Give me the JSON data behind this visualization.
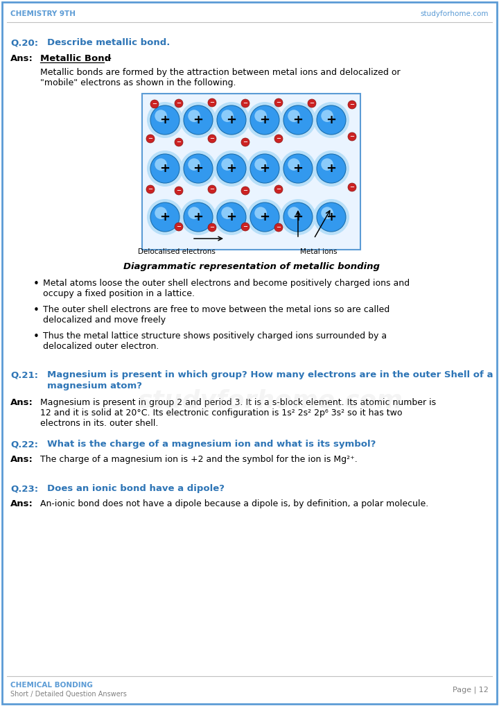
{
  "bg_color": "#ffffff",
  "border_color": "#5b9bd5",
  "header_text_left": "CHEMISTRY 9TH",
  "header_text_right": "studyforhome.com",
  "header_color": "#5b9bd5",
  "footer_left_line1": "CHEMICAL BONDING",
  "footer_left_line2": "Short / Detailed Question Answers",
  "footer_right": "Page | 12",
  "footer_color": "#5b9bd5",
  "q20_label": "Q.20:",
  "q20_text": "Describe metallic bond.",
  "ans_label": "Ans:",
  "ans_underline_text": "Metallic Bond",
  "ans_suffix": ":-",
  "body_text_1a": "Metallic bonds are formed by the attraction between metal ions and delocalized or",
  "body_text_1b": "\"mobile\" electrons as shown in the following.",
  "diagram_caption": "Diagrammatic representation of metallic bonding",
  "bullet1a": "Metal atoms loose the outer shell electrons and become positively charged ions and",
  "bullet1b": "occupy a fixed position in a lattice.",
  "bullet2a": "The outer shell electrons are free to move between the metal ions so are called",
  "bullet2b": "delocalized and move freely",
  "bullet3a": "Thus the metal lattice structure shows positively charged ions surrounded by a",
  "bullet3b": "delocalized outer electron.",
  "q21_label": "Q.21:",
  "q21_text_a": "Magnesium is present in which group? How many electrons are in the outer Shell of a",
  "q21_text_b": "magnesium atom?",
  "ans21_text_a": "Magnesium is present in group 2 and period 3. It is a s-block element. Its atomic number is",
  "ans21_text_b": "12 and it is solid at 20°C. Its electronic configuration is 1s² 2s² 2p⁶ 3s² so it has two",
  "ans21_text_c": "electrons in its. outer shell.",
  "q22_label": "Q.22:",
  "q22_text": "What is the charge of a magnesium ion and what is its symbol?",
  "ans22_text": "The charge of a magnesium ion is +2 and the symbol for the ion is Mg²⁺.",
  "q23_label": "Q.23:",
  "q23_text": "Does an ionic bond have a dipole?",
  "ans23_text": "An-ionic bond does not have a dipole because a dipole is, by definition, a polar molecule.",
  "question_color": "#2e75b6",
  "text_color": "#000000"
}
